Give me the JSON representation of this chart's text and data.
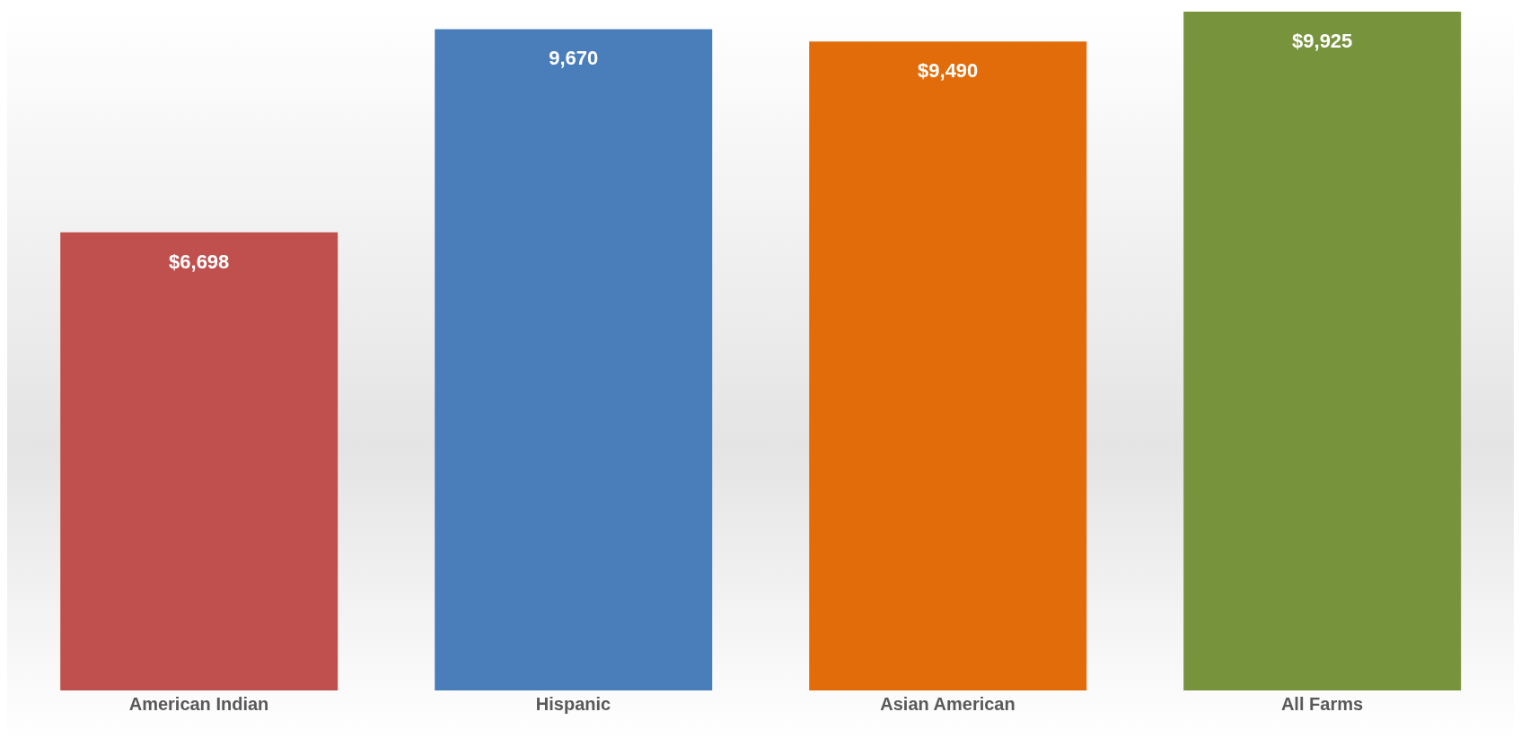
{
  "chart_data": {
    "type": "bar",
    "categories": [
      "American Indian",
      "Hispanic",
      "Asian American",
      "All Farms"
    ],
    "values": [
      6698,
      9670,
      9490,
      9925
    ],
    "colors": [
      "#c0504d",
      "#4a7ebb",
      "#e36c0a",
      "#77933c"
    ],
    "value_labels": [
      "$6,698",
      "9,670",
      "$9,490",
      "$9,925"
    ],
    "grid": false
  }
}
